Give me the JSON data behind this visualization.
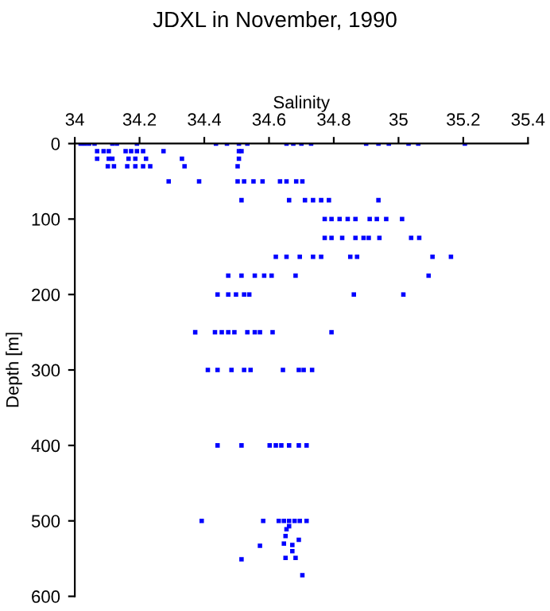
{
  "chart_data": {
    "type": "scatter",
    "title": "JDXL in November, 1990",
    "xlabel": "Salinity",
    "ylabel": "Depth [m]",
    "xlim": [
      34,
      35.4
    ],
    "xticks": [
      34,
      34.2,
      34.4,
      34.6,
      34.8,
      35,
      35.2,
      35.4
    ],
    "ylim": [
      600,
      0
    ],
    "yticks": [
      0,
      100,
      200,
      300,
      400,
      500,
      600
    ],
    "grid": false,
    "marker": "square",
    "series": [
      {
        "color": "#0000ff",
        "x": [
          34.018,
          34.031,
          34.044,
          34.061,
          34.116,
          34.13,
          34.192,
          34.436,
          34.47,
          34.507,
          34.533,
          34.654,
          34.675,
          34.7,
          34.73,
          34.9,
          34.938,
          34.97,
          35.031,
          35.061,
          35.205,
          34.069,
          34.089,
          34.105,
          34.157,
          34.174,
          34.192,
          34.211,
          34.274,
          34.507,
          34.515,
          34.069,
          34.105,
          34.116,
          34.166,
          34.187,
          34.22,
          34.331,
          34.507,
          34.102,
          34.121,
          34.162,
          34.187,
          34.211,
          34.233,
          34.339,
          34.503,
          34.29,
          34.384,
          34.503,
          34.523,
          34.552,
          34.58,
          34.634,
          34.654,
          34.684,
          34.703,
          34.515,
          34.662,
          34.711,
          34.736,
          34.761,
          34.785,
          34.938,
          34.772,
          34.793,
          34.818,
          34.843,
          34.867,
          34.911,
          34.933,
          34.962,
          35.011,
          34.772,
          34.793,
          34.826,
          34.867,
          34.892,
          34.908,
          34.941,
          35.039,
          35.064,
          34.621,
          34.654,
          34.695,
          34.736,
          34.761,
          34.851,
          34.872,
          35.105,
          35.162,
          34.474,
          34.515,
          34.556,
          34.585,
          34.608,
          34.682,
          35.093,
          34.441,
          34.474,
          34.498,
          34.523,
          34.539,
          34.862,
          35.015,
          34.372,
          34.433,
          34.454,
          34.474,
          34.493,
          34.533,
          34.556,
          34.572,
          34.611,
          34.793,
          34.411,
          34.441,
          34.484,
          34.523,
          34.543,
          34.643,
          34.692,
          34.707,
          34.733,
          34.441,
          34.515,
          34.602,
          34.621,
          34.638,
          34.662,
          34.692,
          34.716,
          34.392,
          34.582,
          34.63,
          34.646,
          34.662,
          34.679,
          34.695,
          34.716,
          34.662,
          34.654,
          34.651,
          34.572,
          34.646,
          34.692,
          34.672,
          34.672,
          34.651,
          34.682,
          34.515,
          34.703
        ],
        "values": [
          0,
          0,
          0,
          0,
          0,
          0,
          0,
          0,
          0,
          0,
          0,
          0,
          0,
          0,
          0,
          0,
          0,
          0,
          0,
          0,
          0,
          10,
          10,
          10,
          10,
          10,
          10,
          10,
          10,
          10,
          10,
          20,
          20,
          20,
          20,
          20,
          20,
          20,
          20,
          30,
          30,
          30,
          30,
          30,
          30,
          30,
          30,
          50,
          50,
          50,
          50,
          50,
          50,
          50,
          50,
          50,
          50,
          75,
          75,
          75,
          75,
          75,
          75,
          75,
          100,
          100,
          100,
          100,
          100,
          100,
          100,
          100,
          100,
          125,
          125,
          125,
          125,
          125,
          125,
          125,
          125,
          125,
          150,
          150,
          150,
          150,
          150,
          150,
          150,
          150,
          150,
          175,
          175,
          175,
          175,
          175,
          175,
          175,
          200,
          200,
          200,
          200,
          200,
          200,
          200,
          250,
          250,
          250,
          250,
          250,
          250,
          250,
          250,
          250,
          250,
          300,
          300,
          300,
          300,
          300,
          300,
          300,
          300,
          300,
          400,
          400,
          400,
          400,
          400,
          400,
          400,
          400,
          500,
          500,
          500,
          500,
          500,
          500,
          500,
          500,
          507,
          511,
          520,
          533,
          530,
          525,
          532,
          540,
          549,
          549,
          551,
          572
        ]
      }
    ]
  }
}
